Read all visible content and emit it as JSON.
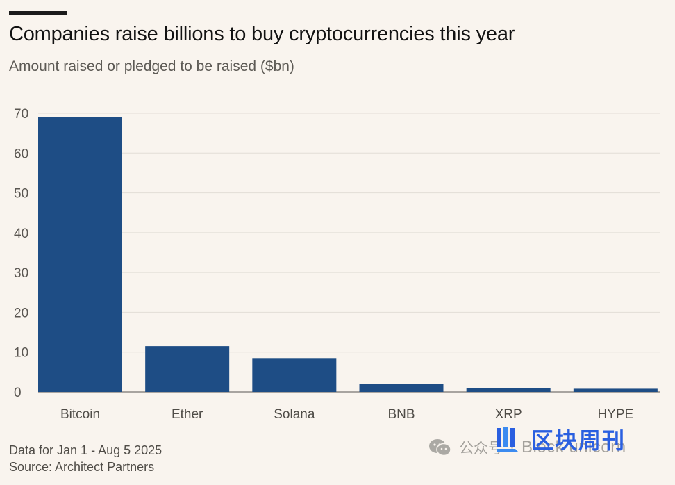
{
  "chart_data": {
    "type": "bar",
    "title": "Companies raise billions to buy cryptocurrencies this year",
    "subtitle": "Amount raised or pledged to be raised ($bn)",
    "categories": [
      "Bitcoin",
      "Ether",
      "Solana",
      "BNB",
      "XRP",
      "HYPE"
    ],
    "values": [
      69,
      11.5,
      8.5,
      2,
      1,
      0.8
    ],
    "ylim": [
      0,
      70
    ],
    "yticks": [
      0,
      10,
      20,
      30,
      40,
      50,
      60,
      70
    ],
    "xlabel": "",
    "ylabel": "",
    "grid": true,
    "bar_color": "#1e4d85"
  },
  "notes": {
    "date_range": "Data for Jan 1 - Aug 5 2025",
    "source": "Source: Architect Partners"
  },
  "watermark": {
    "channel": "公众号",
    "separator": "·",
    "account": "Block unicorn",
    "logo_text": "区块周刊",
    "logo_color": "#2a5fe0"
  }
}
